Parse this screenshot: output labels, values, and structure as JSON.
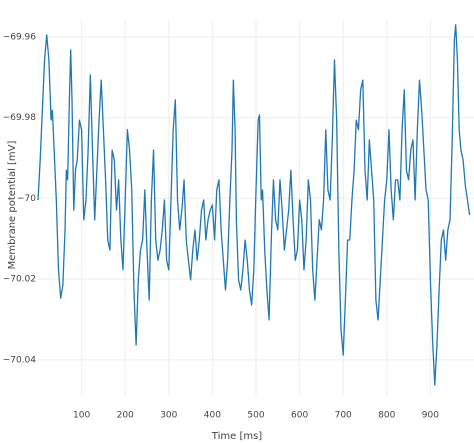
{
  "chart_data": {
    "type": "line",
    "xlabel": "Time [ms]",
    "ylabel": "Membrane potential [mV]",
    "x": [
      0,
      5,
      10,
      15,
      20,
      25,
      30,
      33,
      37,
      42,
      47,
      52,
      57,
      62,
      65,
      68,
      72,
      75,
      78,
      82,
      86,
      90,
      95,
      100,
      105,
      110,
      115,
      120,
      125,
      130,
      135,
      140,
      145,
      150,
      155,
      160,
      165,
      170,
      175,
      180,
      185,
      190,
      195,
      200,
      205,
      210,
      215,
      220,
      225,
      230,
      235,
      240,
      245,
      250,
      255,
      260,
      265,
      270,
      275,
      280,
      285,
      290,
      295,
      300,
      305,
      310,
      315,
      320,
      325,
      330,
      335,
      340,
      345,
      350,
      355,
      360,
      365,
      370,
      375,
      380,
      385,
      390,
      395,
      400,
      405,
      410,
      415,
      420,
      425,
      430,
      435,
      440,
      445,
      448,
      452,
      455,
      460,
      465,
      470,
      475,
      480,
      485,
      490,
      495,
      500,
      505,
      508,
      512,
      515,
      520,
      525,
      530,
      535,
      540,
      545,
      550,
      555,
      560,
      565,
      570,
      575,
      580,
      585,
      590,
      595,
      600,
      605,
      610,
      615,
      620,
      625,
      630,
      635,
      640,
      645,
      650,
      655,
      660,
      665,
      670,
      675,
      680,
      685,
      690,
      695,
      700,
      705,
      710,
      715,
      720,
      725,
      730,
      735,
      740,
      745,
      750,
      755,
      760,
      765,
      770,
      775,
      780,
      785,
      790,
      795,
      800,
      805,
      810,
      815,
      820,
      825,
      830,
      835,
      840,
      845,
      850,
      855,
      860,
      865,
      870,
      875,
      880,
      885,
      890,
      895,
      900,
      905,
      910,
      915,
      920,
      925,
      930,
      935,
      940,
      945,
      950,
      955,
      958,
      962,
      966,
      970,
      975,
      980,
      985,
      990
    ],
    "series": [
      {
        "name": "Membrane potential",
        "color": "#1f77b4",
        "values": [
          -70.0004,
          -69.9905,
          -69.9781,
          -69.9657,
          -69.9595,
          -69.9657,
          -69.9806,
          -69.9781,
          -69.988,
          -70.0004,
          -70.0177,
          -70.0247,
          -70.0215,
          -70.0078,
          -69.993,
          -69.9954,
          -69.9756,
          -69.9632,
          -69.9756,
          -70.0029,
          -69.993,
          -69.9905,
          -69.9806,
          -69.983,
          -70.0053,
          -70.0004,
          -69.988,
          -69.9694,
          -69.988,
          -70.0053,
          -69.993,
          -69.9806,
          -69.9707,
          -69.983,
          -69.9954,
          -70.0103,
          -70.0128,
          -69.988,
          -69.9905,
          -70.0029,
          -69.9954,
          -70.0103,
          -70.0177,
          -70.0004,
          -69.983,
          -69.988,
          -69.9979,
          -70.0227,
          -70.0363,
          -70.0202,
          -70.0128,
          -70.0103,
          -69.9979,
          -70.0128,
          -70.0252,
          -70.0004,
          -69.988,
          -70.0103,
          -70.0153,
          -70.0128,
          -70.0078,
          -70.0004,
          -70.0153,
          -70.0177,
          -70.0004,
          -69.983,
          -69.9756,
          -70.0004,
          -70.0078,
          -70.0029,
          -69.9954,
          -70.0103,
          -70.0153,
          -70.0202,
          -70.0128,
          -70.0078,
          -70.0153,
          -70.0103,
          -70.0029,
          -70.0004,
          -70.0103,
          -70.0053,
          -70.0029,
          -70.0016,
          -70.0103,
          -69.9979,
          -69.9954,
          -70.0078,
          -70.0153,
          -70.0227,
          -70.0153,
          -70.0004,
          -69.988,
          -69.9707,
          -69.983,
          -70.0053,
          -70.0202,
          -70.0227,
          -70.0177,
          -70.0103,
          -70.0153,
          -70.0227,
          -70.0264,
          -70.0177,
          -69.9979,
          -69.9806,
          -69.9793,
          -70.0004,
          -69.9979,
          -70.0128,
          -70.0227,
          -70.0301,
          -70.0103,
          -69.9954,
          -70.0053,
          -70.0078,
          -69.9954,
          -70.0029,
          -70.0128,
          -70.0078,
          -70.0029,
          -69.993,
          -70.0053,
          -70.0153,
          -70.0128,
          -70.0004,
          -70.0053,
          -70.0177,
          -70.0103,
          -69.9954,
          -70.0004,
          -70.0177,
          -70.0252,
          -70.0153,
          -70.0053,
          -70.0078,
          -70.0004,
          -69.983,
          -69.9979,
          -70.0004,
          -69.9855,
          -69.9657,
          -69.9806,
          -70.0128,
          -70.0326,
          -70.0388,
          -70.0252,
          -70.0103,
          -70.0103,
          -70.0004,
          -69.993,
          -69.9806,
          -69.983,
          -69.9731,
          -69.9707,
          -69.993,
          -70.0004,
          -69.9855,
          -69.993,
          -70.0004,
          -70.0252,
          -70.0301,
          -70.0202,
          -70.0103,
          -70.0004,
          -69.9954,
          -69.983,
          -69.9979,
          -70.0053,
          -69.9954,
          -69.9954,
          -70.0004,
          -69.983,
          -69.9731,
          -69.993,
          -69.9954,
          -69.988,
          -69.9855,
          -70.0004,
          -69.983,
          -69.9707,
          -69.9781,
          -69.988,
          -69.9979,
          -70.0004,
          -70.0202,
          -70.0351,
          -70.0462,
          -70.0363,
          -70.0227,
          -70.0103,
          -70.0078,
          -70.0153,
          -70.0078,
          -70.0053,
          -69.9855,
          -69.9607,
          -69.957,
          -69.9657,
          -69.983,
          -69.988,
          -69.9905,
          -69.9967,
          -70.0004,
          -70.0041
        ]
      }
    ],
    "xlim": [
      0,
      1000
    ],
    "ylim": [
      -70.0487,
      -69.9558
    ],
    "xticks": [
      100,
      200,
      300,
      400,
      500,
      600,
      700,
      800,
      900
    ],
    "yticks": [
      {
        "value": -70.04,
        "label": "−70.04"
      },
      {
        "value": -70.02,
        "label": "−70.02"
      },
      {
        "value": -70,
        "label": "−70"
      },
      {
        "value": -69.98,
        "label": "−69.98"
      },
      {
        "value": -69.96,
        "label": "−69.96"
      }
    ],
    "grid": true
  }
}
